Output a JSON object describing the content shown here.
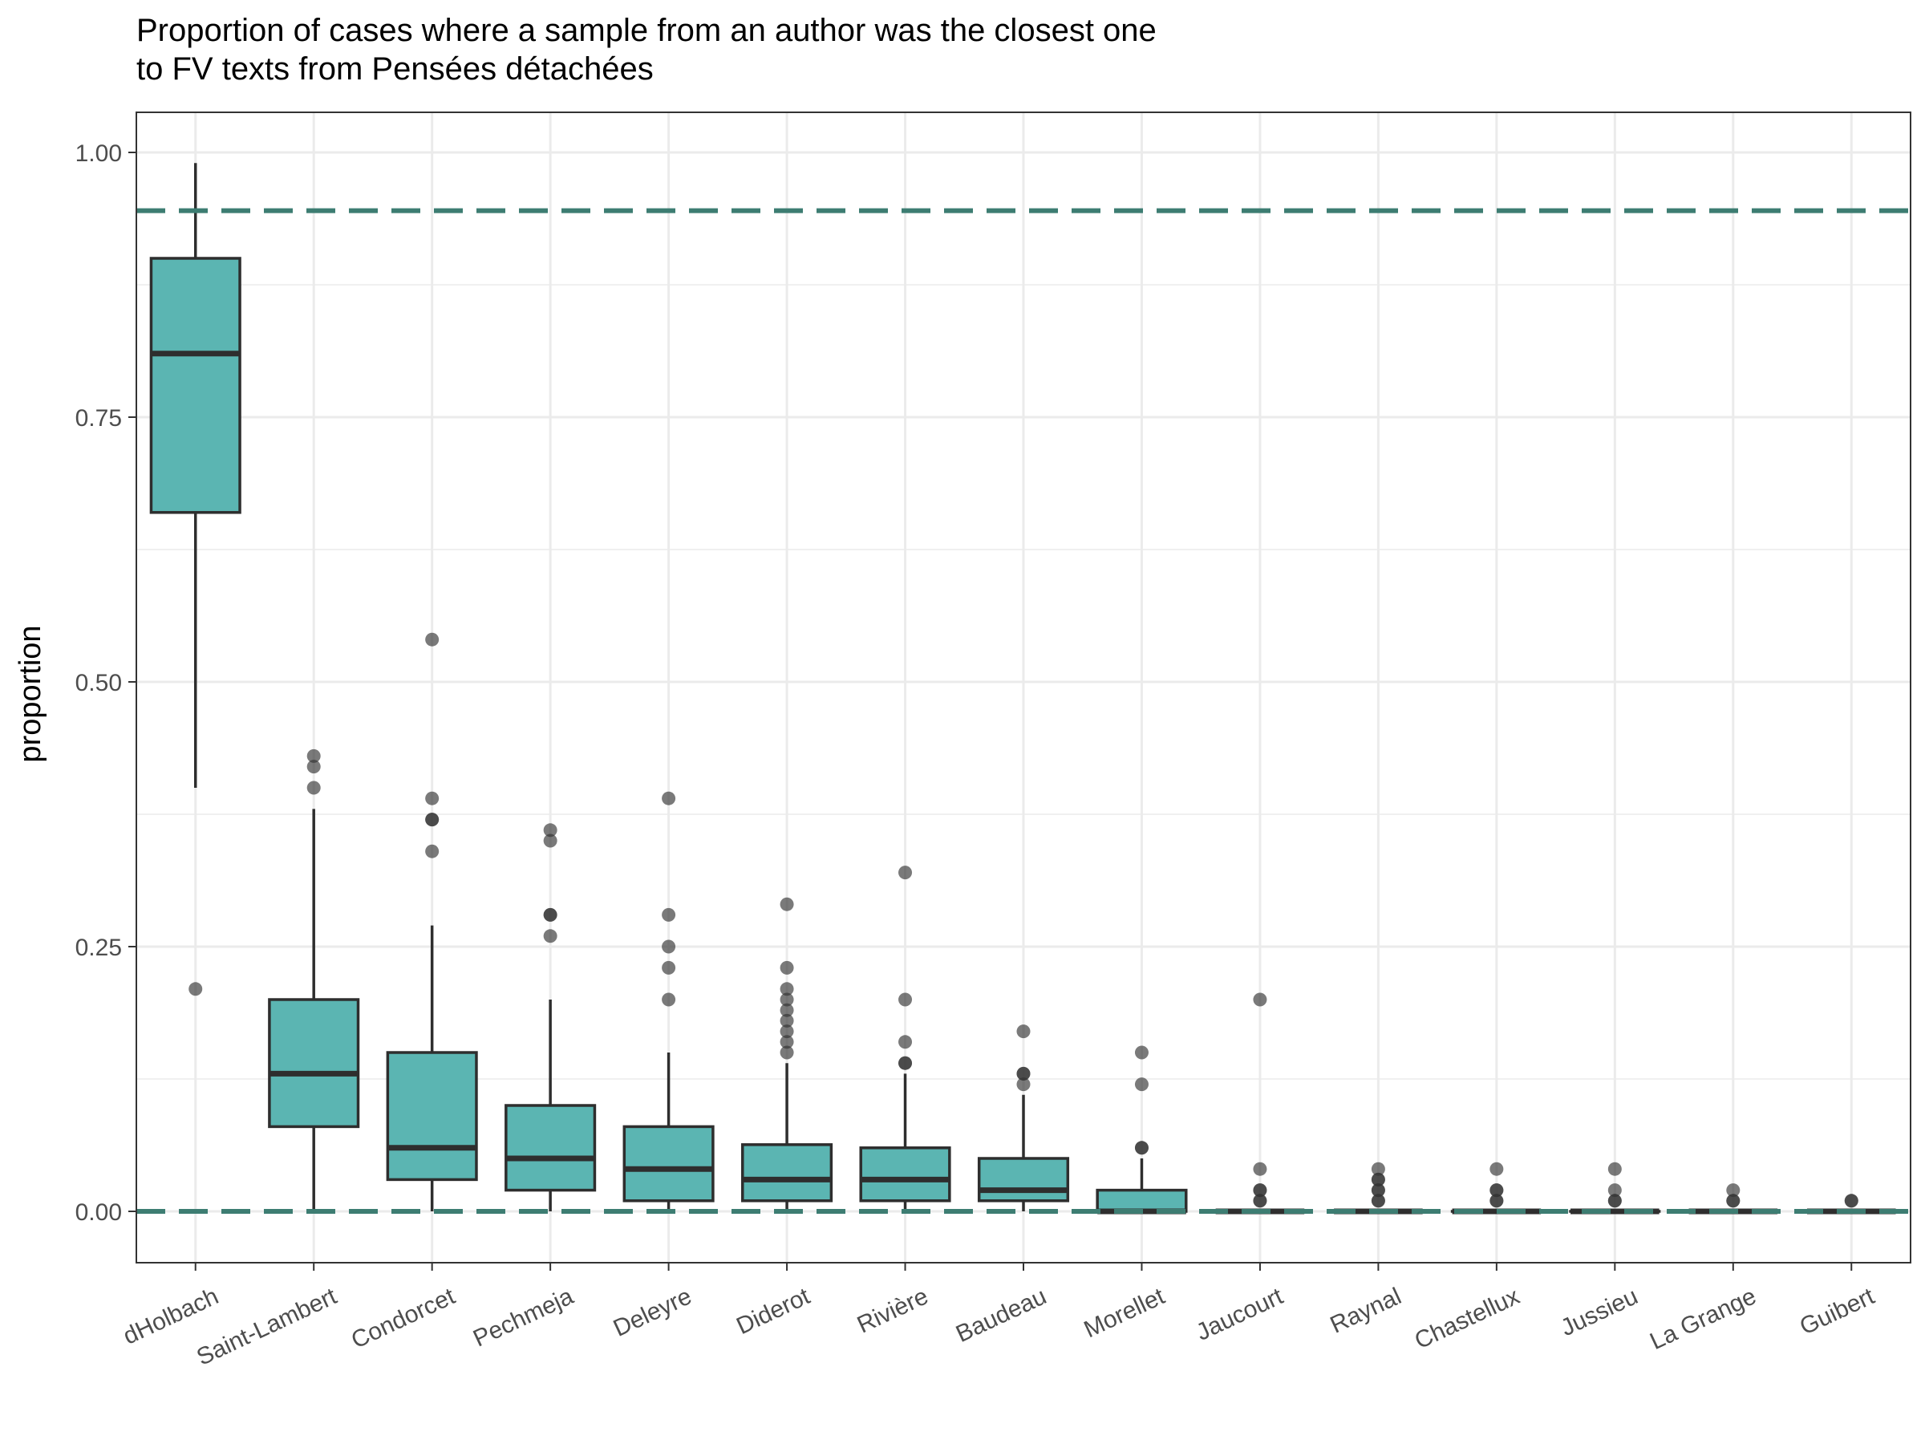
{
  "chart_data": {
    "type": "box",
    "title_lines": [
      "Proportion of cases where a sample from an author was the closest one",
      "to FV texts from Pensées détachées"
    ],
    "xlabel": "",
    "ylabel": "proportion",
    "ylim": [
      -0.047,
      1.037
    ],
    "yticks": [
      {
        "value": 0.0,
        "label": "0.00"
      },
      {
        "value": 0.25,
        "label": "0.25"
      },
      {
        "value": 0.5,
        "label": "0.50"
      },
      {
        "value": 0.75,
        "label": "0.75"
      },
      {
        "value": 1.0,
        "label": "1.00"
      }
    ],
    "grid": true,
    "reference_lines": [
      0.945,
      0.0
    ],
    "colors": {
      "box_fill": "#5bb5b2",
      "box_stroke": "#2e2e2e",
      "outlier": "#333333",
      "reference_line": "#3d7d72",
      "grid": "#ebebeb",
      "panel_border": "#333333"
    },
    "categories": [
      "dHolbach",
      "Saint-Lambert",
      "Condorcet",
      "Pechmeja",
      "Deleyre",
      "Diderot",
      "Rivière",
      "Baudeau",
      "Morellet",
      "Jaucourt",
      "Raynal",
      "Chastellux",
      "Jussieu",
      "La Grange",
      "Guibert"
    ],
    "boxes": [
      {
        "min": 0.4,
        "q1": 0.66,
        "median": 0.81,
        "q3": 0.9,
        "max": 0.99,
        "outliers": [
          0.21
        ]
      },
      {
        "min": 0.0,
        "q1": 0.08,
        "median": 0.13,
        "q3": 0.2,
        "max": 0.38,
        "outliers": [
          0.4,
          0.42,
          0.43
        ]
      },
      {
        "min": 0.0,
        "q1": 0.03,
        "median": 0.06,
        "q3": 0.15,
        "max": 0.27,
        "outliers": [
          0.34,
          0.37,
          0.37,
          0.39,
          0.54
        ]
      },
      {
        "min": 0.0,
        "q1": 0.02,
        "median": 0.05,
        "q3": 0.1,
        "max": 0.2,
        "outliers": [
          0.26,
          0.28,
          0.28,
          0.35,
          0.36
        ]
      },
      {
        "min": 0.0,
        "q1": 0.01,
        "median": 0.04,
        "q3": 0.08,
        "max": 0.15,
        "outliers": [
          0.2,
          0.23,
          0.25,
          0.28,
          0.39
        ]
      },
      {
        "min": 0.0,
        "q1": 0.01,
        "median": 0.03,
        "q3": 0.063,
        "max": 0.14,
        "outliers": [
          0.15,
          0.16,
          0.17,
          0.18,
          0.19,
          0.2,
          0.21,
          0.23,
          0.29
        ]
      },
      {
        "min": 0.0,
        "q1": 0.01,
        "median": 0.03,
        "q3": 0.06,
        "max": 0.13,
        "outliers": [
          0.14,
          0.14,
          0.16,
          0.2,
          0.32
        ]
      },
      {
        "min": 0.0,
        "q1": 0.01,
        "median": 0.02,
        "q3": 0.05,
        "max": 0.11,
        "outliers": [
          0.12,
          0.13,
          0.13,
          0.17
        ]
      },
      {
        "min": 0.0,
        "q1": 0.0,
        "median": 0.0,
        "q3": 0.02,
        "max": 0.05,
        "outliers": [
          0.06,
          0.06,
          0.12,
          0.15
        ]
      },
      {
        "min": 0.0,
        "q1": 0.0,
        "median": 0.0,
        "q3": 0.0,
        "max": 0.0,
        "outliers": [
          0.01,
          0.01,
          0.02,
          0.02,
          0.04,
          0.2
        ]
      },
      {
        "min": 0.0,
        "q1": 0.0,
        "median": 0.0,
        "q3": 0.0,
        "max": 0.0,
        "outliers": [
          0.01,
          0.01,
          0.02,
          0.02,
          0.03,
          0.03,
          0.04
        ]
      },
      {
        "min": 0.0,
        "q1": 0.0,
        "median": 0.0,
        "q3": 0.0,
        "max": 0.0,
        "outliers": [
          0.01,
          0.01,
          0.02,
          0.02,
          0.04
        ]
      },
      {
        "min": 0.0,
        "q1": 0.0,
        "median": 0.0,
        "q3": 0.0,
        "max": 0.0,
        "outliers": [
          0.01,
          0.01,
          0.02,
          0.04
        ]
      },
      {
        "min": 0.0,
        "q1": 0.0,
        "median": 0.0,
        "q3": 0.0,
        "max": 0.0,
        "outliers": [
          0.01,
          0.01,
          0.02
        ]
      },
      {
        "min": 0.0,
        "q1": 0.0,
        "median": 0.0,
        "q3": 0.0,
        "max": 0.0,
        "outliers": [
          0.01,
          0.01
        ]
      }
    ]
  }
}
